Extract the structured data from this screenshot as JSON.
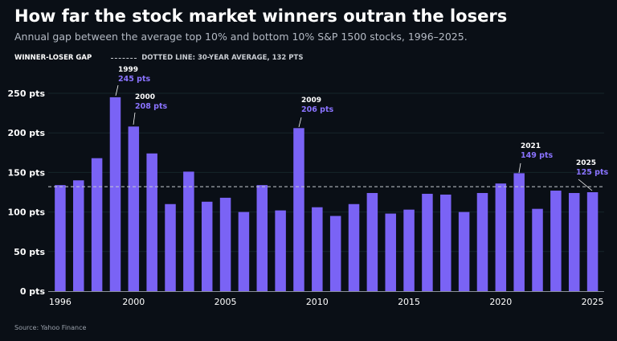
{
  "header": {
    "title": "How far the stock market winners outran the losers",
    "subtitle": "Annual gap between the average top 10% and bottom 10% S&P 1500 stocks, 1996–2025."
  },
  "legend": {
    "series_label": "WINNER-LOSER GAP",
    "avg_label": "DOTTED LINE: 30-YEAR AVERAGE, 132 PTS"
  },
  "source": "Source: Yahoo Finance",
  "colors": {
    "bar": "#7a63f5",
    "annotation_value": "#8a73ff",
    "background": "#0a0f16",
    "gridline": "#16262a",
    "average_line": "#c8ccd2"
  },
  "chart_data": {
    "type": "bar",
    "x": [
      1996,
      1997,
      1998,
      1999,
      2000,
      2001,
      2002,
      2003,
      2004,
      2005,
      2006,
      2007,
      2008,
      2009,
      2010,
      2011,
      2012,
      2013,
      2014,
      2015,
      2016,
      2017,
      2018,
      2019,
      2020,
      2021,
      2022,
      2023,
      2024,
      2025
    ],
    "values": [
      134,
      140,
      168,
      245,
      208,
      174,
      110,
      151,
      113,
      118,
      100,
      134,
      102,
      206,
      106,
      95,
      110,
      124,
      98,
      103,
      123,
      122,
      100,
      124,
      136,
      149,
      104,
      127,
      124,
      125
    ],
    "average": 132,
    "ylim": [
      0,
      250
    ],
    "yticks": [
      0,
      50,
      100,
      150,
      200,
      250
    ],
    "ytick_labels": [
      "0 pts",
      "50 pts",
      "100 pts",
      "150 pts",
      "200 pts",
      "250 pts"
    ],
    "xticks": [
      1996,
      2000,
      2005,
      2010,
      2015,
      2020,
      2025
    ],
    "xtick_labels": [
      "1996",
      "2000",
      "2005",
      "2010",
      "2015",
      "2020",
      "2025"
    ],
    "grid": true,
    "annotations": [
      {
        "year": 1999,
        "label": "1999",
        "value_label": "245 pts"
      },
      {
        "year": 2000,
        "label": "2000",
        "value_label": "208 pts"
      },
      {
        "year": 2009,
        "label": "2009",
        "value_label": "206 pts"
      },
      {
        "year": 2021,
        "label": "2021",
        "value_label": "149 pts"
      },
      {
        "year": 2025,
        "label": "2025",
        "value_label": "125 pts"
      }
    ]
  }
}
